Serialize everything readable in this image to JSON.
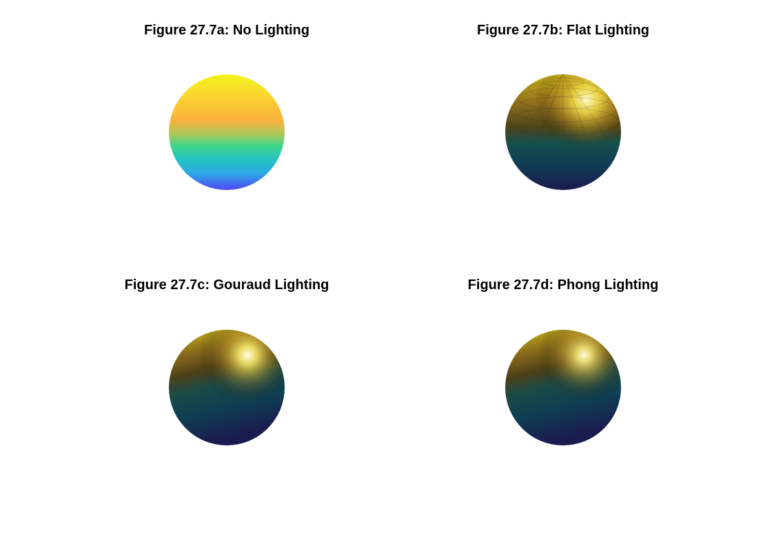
{
  "figure": {
    "panels": [
      {
        "id": "a",
        "title": "Figure 27.7a: No Lighting",
        "shading": "none"
      },
      {
        "id": "b",
        "title": "Figure 27.7b: Flat Lighting",
        "shading": "flat"
      },
      {
        "id": "c",
        "title": "Figure 27.7c: Gouraud Lighting",
        "shading": "gouraud"
      },
      {
        "id": "d",
        "title": "Figure 27.7d: Phong Lighting",
        "shading": "phong"
      }
    ],
    "colormap": "parula",
    "colors": {
      "top_yellow": "#f5f31e",
      "orange": "#fbb83c",
      "green": "#3ad68a",
      "cyan": "#25c3c3",
      "blue": "#4d4cf7",
      "dark_navy": "#1a1e52",
      "dark_teal": "#0f4a4e",
      "olive_brown": "#6b5418",
      "highlight": "#fffbe0"
    }
  }
}
